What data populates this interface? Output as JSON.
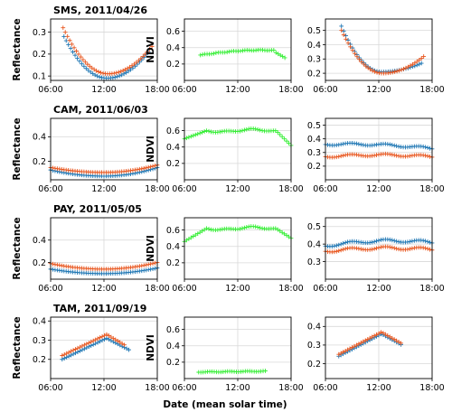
{
  "figure": {
    "xlabel": "Date (mean solar time)"
  },
  "colors": {
    "blue": "#1f77b4",
    "orange": "#e8561e",
    "green": "#33ee33",
    "grid": "#d8d8d8"
  },
  "chart_data": [
    {
      "type": "scatter",
      "title": "SMS, 2011/04/26",
      "ylabel": "Reflectance",
      "x_range": [
        "06:00",
        "18:00"
      ],
      "x_ticks": [
        "06:00",
        "12:00",
        "18:00"
      ],
      "ylim": [
        0.08,
        0.36
      ],
      "y_ticks": [
        0.1,
        0.2,
        0.3
      ],
      "grid": true,
      "series": [
        {
          "color": "blue",
          "curve": "uvis",
          "params": [
            7.5,
            17.2,
            0.28,
            0.09,
            0.22
          ]
        },
        {
          "color": "orange",
          "curve": "uvis",
          "params": [
            7.4,
            17.5,
            0.32,
            0.11,
            0.24
          ]
        }
      ]
    },
    {
      "type": "scatter",
      "title": "",
      "ylabel": "NDVI",
      "x_range": [
        "06:00",
        "18:00"
      ],
      "x_ticks": [
        "06:00",
        "12:00",
        "18:00"
      ],
      "ylim": [
        0.0,
        0.75
      ],
      "y_ticks": [
        0.2,
        0.4,
        0.6
      ],
      "grid": true,
      "series": [
        {
          "color": "green",
          "curve": "ndvi_sms",
          "params": [
            7.8,
            17.4,
            0.31,
            0.37,
            0.27
          ]
        }
      ]
    },
    {
      "type": "scatter",
      "title": "",
      "ylabel": "",
      "x_range": [
        "06:00",
        "18:00"
      ],
      "x_ticks": [
        "06:00",
        "12:00",
        "18:00"
      ],
      "ylim": [
        0.15,
        0.58
      ],
      "y_ticks": [
        0.2,
        0.3,
        0.4,
        0.5
      ],
      "grid": true,
      "series": [
        {
          "color": "blue",
          "curve": "uvis",
          "params": [
            7.8,
            16.8,
            0.53,
            0.21,
            0.27
          ]
        },
        {
          "color": "orange",
          "curve": "uvis",
          "params": [
            7.8,
            17.1,
            0.5,
            0.2,
            0.32
          ]
        }
      ]
    },
    {
      "type": "scatter",
      "title": "CAM, 2011/06/03",
      "ylabel": "Reflectance",
      "x_range": [
        "06:00",
        "18:00"
      ],
      "x_ticks": [
        "06:00",
        "12:00",
        "18:00"
      ],
      "ylim": [
        0.05,
        0.55
      ],
      "y_ticks": [
        0.2,
        0.4
      ],
      "grid": true,
      "series": [
        {
          "color": "blue",
          "curve": "uvis",
          "params": [
            6.0,
            18.0,
            0.13,
            0.08,
            0.15
          ]
        },
        {
          "color": "orange",
          "curve": "uvis",
          "params": [
            6.0,
            18.0,
            0.15,
            0.11,
            0.17
          ]
        }
      ]
    },
    {
      "type": "scatter",
      "title": "",
      "ylabel": "NDVI",
      "x_range": [
        "06:00",
        "18:00"
      ],
      "x_ticks": [
        "06:00",
        "12:00",
        "18:00"
      ],
      "ylim": [
        0.0,
        0.75
      ],
      "y_ticks": [
        0.2,
        0.4,
        0.6
      ],
      "grid": true,
      "series": [
        {
          "color": "green",
          "curve": "ndvi_plateau",
          "params": [
            6.0,
            18.0,
            0.5,
            0.6,
            0.42
          ]
        }
      ]
    },
    {
      "type": "scatter",
      "title": "",
      "ylabel": "",
      "x_range": [
        "06:00",
        "18:00"
      ],
      "x_ticks": [
        "06:00",
        "12:00",
        "18:00"
      ],
      "ylim": [
        0.1,
        0.55
      ],
      "y_ticks": [
        0.2,
        0.3,
        0.4,
        0.5
      ],
      "grid": true,
      "series": [
        {
          "color": "blue",
          "curve": "wavy",
          "params": [
            6.0,
            18.0,
            0.36,
            0.38,
            0.33
          ]
        },
        {
          "color": "orange",
          "curve": "wavy",
          "params": [
            6.0,
            18.0,
            0.27,
            0.29,
            0.27
          ]
        }
      ]
    },
    {
      "type": "scatter",
      "title": "PAY, 2011/05/05",
      "ylabel": "Reflectance",
      "x_range": [
        "06:00",
        "18:00"
      ],
      "x_ticks": [
        "06:00",
        "12:00",
        "18:00"
      ],
      "ylim": [
        0.05,
        0.6
      ],
      "y_ticks": [
        0.2,
        0.4
      ],
      "grid": true,
      "series": [
        {
          "color": "blue",
          "curve": "uvis",
          "params": [
            6.0,
            18.0,
            0.14,
            0.1,
            0.15
          ]
        },
        {
          "color": "orange",
          "curve": "uvis",
          "params": [
            6.0,
            18.0,
            0.19,
            0.14,
            0.2
          ]
        }
      ]
    },
    {
      "type": "scatter",
      "title": "",
      "ylabel": "NDVI",
      "x_range": [
        "06:00",
        "18:00"
      ],
      "x_ticks": [
        "06:00",
        "12:00",
        "18:00"
      ],
      "ylim": [
        0.0,
        0.75
      ],
      "y_ticks": [
        0.2,
        0.4,
        0.6
      ],
      "grid": true,
      "series": [
        {
          "color": "green",
          "curve": "ndvi_plateau",
          "params": [
            6.0,
            18.0,
            0.46,
            0.62,
            0.5
          ]
        }
      ]
    },
    {
      "type": "scatter",
      "title": "",
      "ylabel": "",
      "x_range": [
        "06:00",
        "18:00"
      ],
      "x_ticks": [
        "06:00",
        "12:00",
        "18:00"
      ],
      "ylim": [
        0.2,
        0.55
      ],
      "y_ticks": [
        0.3,
        0.4,
        0.5
      ],
      "grid": true,
      "series": [
        {
          "color": "blue",
          "curve": "wavy",
          "params": [
            6.0,
            18.0,
            0.39,
            0.42,
            0.41
          ]
        },
        {
          "color": "orange",
          "curve": "wavy",
          "params": [
            6.0,
            18.0,
            0.36,
            0.38,
            0.37
          ]
        }
      ]
    },
    {
      "type": "scatter",
      "title": "TAM, 2011/09/19",
      "ylabel": "Reflectance",
      "x_range": [
        "06:00",
        "18:00"
      ],
      "x_ticks": [
        "06:00",
        "12:00",
        "18:00"
      ],
      "ylim": [
        0.1,
        0.42
      ],
      "y_ticks": [
        0.2,
        0.3,
        0.4
      ],
      "grid": true,
      "series": [
        {
          "color": "blue",
          "curve": "peak",
          "params": [
            7.3,
            14.8,
            0.2,
            0.31,
            0.25
          ]
        },
        {
          "color": "orange",
          "curve": "peak",
          "params": [
            7.3,
            14.5,
            0.22,
            0.33,
            0.27
          ]
        }
      ]
    },
    {
      "type": "scatter",
      "title": "",
      "ylabel": "NDVI",
      "x_range": [
        "06:00",
        "18:00"
      ],
      "x_ticks": [
        "06:00",
        "12:00",
        "18:00"
      ],
      "ylim": [
        0.0,
        0.75
      ],
      "y_ticks": [
        0.2,
        0.4,
        0.6
      ],
      "grid": true,
      "series": [
        {
          "color": "green",
          "curve": "flat",
          "params": [
            7.6,
            15.2,
            0.08,
            0.09,
            0.09
          ]
        }
      ]
    },
    {
      "type": "scatter",
      "title": "",
      "ylabel": "",
      "x_range": [
        "06:00",
        "18:00"
      ],
      "x_ticks": [
        "06:00",
        "12:00",
        "18:00"
      ],
      "ylim": [
        0.12,
        0.45
      ],
      "y_ticks": [
        0.2,
        0.3,
        0.4
      ],
      "grid": true,
      "series": [
        {
          "color": "blue",
          "curve": "peak",
          "params": [
            7.5,
            14.6,
            0.24,
            0.36,
            0.3
          ]
        },
        {
          "color": "orange",
          "curve": "peak",
          "params": [
            7.5,
            14.5,
            0.25,
            0.37,
            0.31
          ]
        }
      ]
    }
  ]
}
